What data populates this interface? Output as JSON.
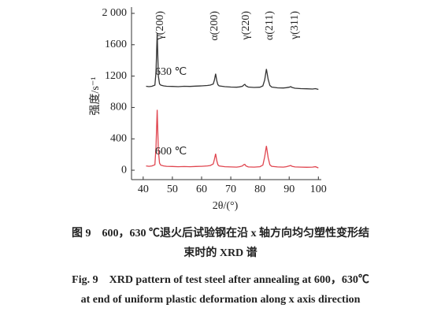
{
  "chart_data": {
    "type": "line",
    "x_label": "2θ/(°)",
    "y_label": "强度/s⁻¹",
    "x": [
      41,
      42,
      43,
      44,
      44.4,
      44.8,
      45.2,
      45.6,
      46,
      47,
      48,
      50,
      52,
      54,
      56,
      58,
      60,
      62,
      63,
      64,
      64.4,
      64.8,
      65.2,
      65.6,
      66,
      68,
      70,
      72,
      73,
      74,
      74.4,
      74.8,
      75.2,
      76,
      78,
      80,
      81,
      81.6,
      82.2,
      82.8,
      83.4,
      84,
      86,
      88,
      89,
      90,
      90.5,
      91,
      92,
      94,
      96,
      98,
      99,
      100
    ],
    "series": [
      {
        "name": "630 ℃",
        "color": "#333333",
        "values": [
          1070,
          1065,
          1070,
          1085,
          1250,
          1750,
          1200,
          1100,
          1085,
          1075,
          1070,
          1068,
          1065,
          1070,
          1068,
          1072,
          1075,
          1080,
          1085,
          1100,
          1150,
          1230,
          1140,
          1090,
          1075,
          1065,
          1060,
          1058,
          1062,
          1070,
          1085,
          1095,
          1075,
          1060,
          1055,
          1058,
          1075,
          1150,
          1290,
          1160,
          1080,
          1060,
          1050,
          1048,
          1052,
          1058,
          1065,
          1055,
          1045,
          1040,
          1038,
          1035,
          1040,
          1030
        ]
      },
      {
        "name": "600 ℃",
        "color": "#e0454f",
        "values": [
          55,
          50,
          55,
          70,
          300,
          770,
          250,
          90,
          65,
          55,
          50,
          48,
          45,
          47,
          45,
          48,
          50,
          55,
          60,
          80,
          140,
          210,
          120,
          70,
          55,
          45,
          42,
          40,
          45,
          55,
          70,
          75,
          55,
          42,
          40,
          45,
          65,
          170,
          310,
          160,
          70,
          50,
          42,
          40,
          45,
          55,
          60,
          50,
          42,
          40,
          38,
          40,
          45,
          30
        ]
      }
    ],
    "annotations": [
      "γ(200)",
      "α(200)",
      "γ(220)",
      "α(211)",
      "γ(311)"
    ],
    "xlim": [
      36,
      101
    ],
    "ylim": [
      -120,
      2080
    ],
    "xticks": [
      40,
      50,
      60,
      70,
      80,
      90,
      100
    ],
    "yticks": [
      0,
      400,
      800,
      1200,
      1600,
      {
        "value": 2000,
        "label": "2 000"
      }
    ],
    "grid": false,
    "caption": [
      "图 9　600，630 ℃退火后试验钢在沿 x 轴方向均匀塑性变形结",
      "束时的 XRD 谱",
      "Fig. 9　XRD pattern of test steel after annealing at 600，630℃",
      "at end of uniform plastic deformation along x axis direction"
    ]
  }
}
